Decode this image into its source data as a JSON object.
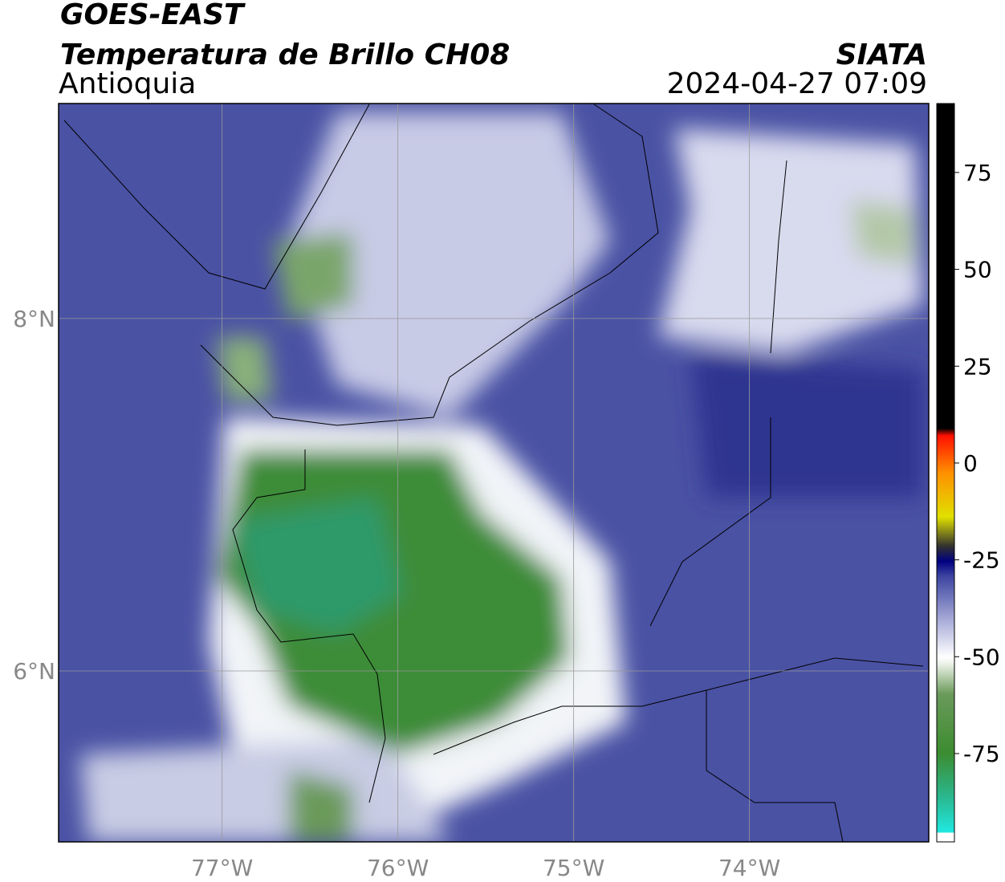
{
  "header": {
    "source": "GOES-EAST",
    "title": "Temperatura de Brillo CH08",
    "region": "Antioquia",
    "agency": "SIATA",
    "datetime": "2024-04-27 07:09"
  },
  "map": {
    "xlim": [
      -77.93,
      -72.98
    ],
    "ylim": [
      5.03,
      9.22
    ],
    "xticks": [
      {
        "value": -77,
        "label": "77°W"
      },
      {
        "value": -76,
        "label": "76°W"
      },
      {
        "value": -75,
        "label": "75°W"
      },
      {
        "value": -74,
        "label": "74°W"
      }
    ],
    "yticks": [
      {
        "value": 6,
        "label": "6°N"
      },
      {
        "value": 8,
        "label": "8°N"
      }
    ],
    "grid": true
  },
  "colorbar": {
    "lim": [
      -97.8,
      92.8
    ],
    "ticks": [
      -75,
      -50,
      -25,
      0,
      25,
      50,
      75
    ]
  }
}
